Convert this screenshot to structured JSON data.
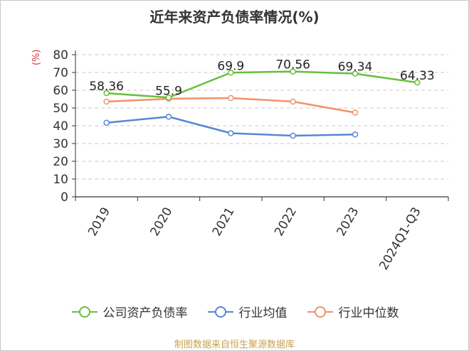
{
  "chart_data": {
    "type": "line",
    "title": "近年来资产负债率情况(%)",
    "ylabel": "(%)",
    "ylim": [
      0,
      80
    ],
    "yticks": [
      0,
      10,
      20,
      30,
      40,
      50,
      60,
      70,
      80
    ],
    "grid": true,
    "legend_position": "bottom",
    "categories": [
      "2019",
      "2020",
      "2021",
      "2022",
      "2023",
      "2024Q1-Q3"
    ],
    "series": [
      {
        "name": "公司资产负债率",
        "color": "#66bf3c",
        "values": [
          58.36,
          55.9,
          69.9,
          70.56,
          69.34,
          64.33
        ],
        "labels": [
          "58.36",
          "55.9",
          "69.9",
          "70.56",
          "69.34",
          "64.33"
        ]
      },
      {
        "name": "行业均值",
        "color": "#5588d3",
        "values": [
          41.7,
          45.1,
          35.8,
          34.4,
          35.1,
          null
        ]
      },
      {
        "name": "行业中位数",
        "color": "#f0926a",
        "values": [
          53.6,
          55.2,
          55.6,
          53.6,
          47.4,
          null
        ]
      }
    ]
  },
  "source": "制图数据来自恒生聚源数据库"
}
